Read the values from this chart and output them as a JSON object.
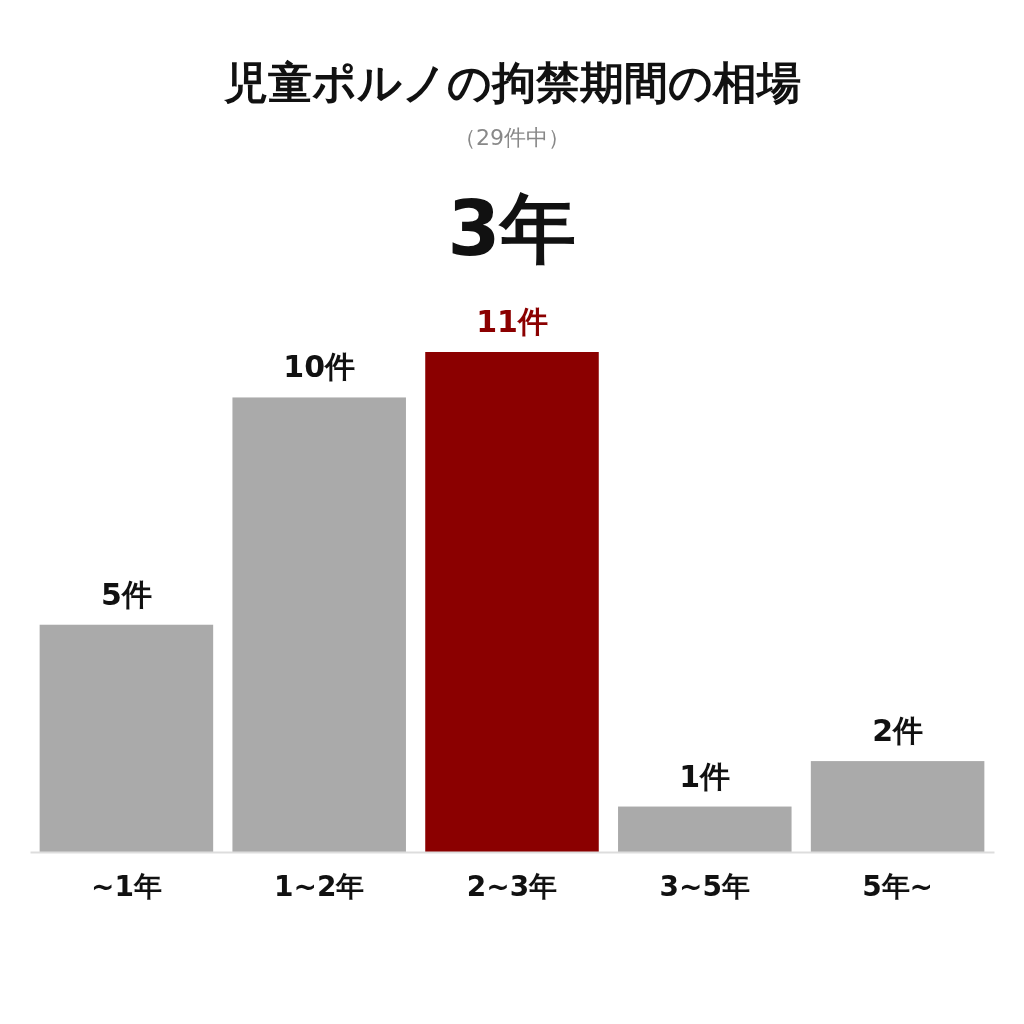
{
  "chart_data": {
    "type": "bar",
    "title": "児童ポルノの拘禁期間の相場",
    "subtitle": "（29件中）",
    "annotations": [
      "3年"
    ],
    "categories": [
      "~1年",
      "1~2年",
      "2~3年",
      "3~5年",
      "5年~"
    ],
    "values": [
      5,
      10,
      11,
      1,
      2
    ],
    "colors": [
      "#aaaaaa",
      "#aaaaaa",
      "#8b0000",
      "#aaaaaa",
      "#aaaaaa"
    ],
    "value_labels": [
      "5件",
      "10件",
      "11件",
      "1件",
      "2件"
    ],
    "grid": false
  }
}
